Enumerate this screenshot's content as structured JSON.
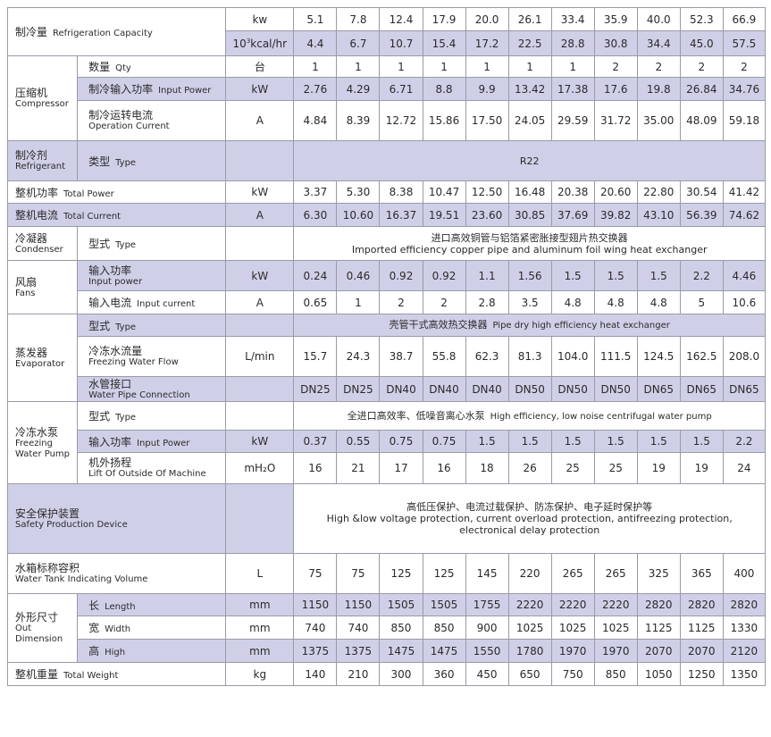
{
  "rows": {
    "cap_kw": {
      "label_zh": "制冷量",
      "label_en": "Refrigeration Capacity",
      "unit": "kw",
      "values": [
        "5.1",
        "7.8",
        "12.4",
        "17.9",
        "20.0",
        "26.1",
        "33.4",
        "35.9",
        "40.0",
        "52.3",
        "66.9"
      ]
    },
    "cap_kcal": {
      "unit_base": "10",
      "unit_sup": "3",
      "unit_rest": "kcal/hr",
      "values": [
        "4.4",
        "6.7",
        "10.7",
        "15.4",
        "17.2",
        "22.5",
        "28.8",
        "30.8",
        "34.4",
        "45.0",
        "57.5"
      ]
    },
    "comp_qty": {
      "group_zh": "压缩机",
      "group_en": "Compressor",
      "label_zh": "数量",
      "label_en": "Qty",
      "unit": "台",
      "values": [
        "1",
        "1",
        "1",
        "1",
        "1",
        "1",
        "1",
        "2",
        "2",
        "2",
        "2"
      ]
    },
    "comp_power": {
      "label_zh": "制冷输入功率",
      "label_en": "Input Power",
      "unit": "kW",
      "values": [
        "2.76",
        "4.29",
        "6.71",
        "8.8",
        "9.9",
        "13.42",
        "17.38",
        "17.6",
        "19.8",
        "26.84",
        "34.76"
      ]
    },
    "comp_current": {
      "label_zh": "制冷运转电流",
      "label_en": "Operation Current",
      "unit": "A",
      "values": [
        "4.84",
        "8.39",
        "12.72",
        "15.86",
        "17.50",
        "24.05",
        "29.59",
        "31.72",
        "35.00",
        "48.09",
        "59.18"
      ]
    },
    "refrigerant": {
      "group_zh": "制冷剂",
      "group_en": "Refrigerant",
      "label_zh": "类型",
      "label_en": "Type",
      "value": "R22"
    },
    "total_power": {
      "label_zh": "整机功率",
      "label_en": "Total Power",
      "unit": "kW",
      "values": [
        "3.37",
        "5.30",
        "8.38",
        "10.47",
        "12.50",
        "16.48",
        "20.38",
        "20.60",
        "22.80",
        "30.54",
        "41.42"
      ]
    },
    "total_current": {
      "label_zh": "整机电流",
      "label_en": "Total Current",
      "unit": "A",
      "values": [
        "6.30",
        "10.60",
        "16.37",
        "19.51",
        "23.60",
        "30.85",
        "37.69",
        "39.82",
        "43.10",
        "56.39",
        "74.62"
      ]
    },
    "condenser": {
      "group_zh": "冷凝器",
      "group_en": "Condenser",
      "label_zh": "型式",
      "label_en": "Type",
      "value_zh": "进口高效铜管与铝箔紧密胀接型翅片热交换器",
      "value_en": "Imported efficiency copper pipe and aluminum foil wing heat exchanger"
    },
    "fan_power": {
      "group_zh": "风扇",
      "group_en": "Fans",
      "label_zh": "输入功率",
      "label_en": "Input power",
      "unit": "kW",
      "values": [
        "0.24",
        "0.46",
        "0.92",
        "0.92",
        "1.1",
        "1.56",
        "1.5",
        "1.5",
        "1.5",
        "2.2",
        "4.46"
      ]
    },
    "fan_current": {
      "label_zh": "输入电流",
      "label_en": "Input current",
      "unit": "A",
      "values": [
        "0.65",
        "1",
        "2",
        "2",
        "2.8",
        "3.5",
        "4.8",
        "4.8",
        "4.8",
        "5",
        "10.6"
      ]
    },
    "evap_type": {
      "group_zh": "蒸发器",
      "group_en": "Evaporator",
      "label_zh": "型式",
      "label_en": "Type",
      "value_zh": "壳管干式高效热交换器",
      "value_en": "Pipe dry high efficiency heat exchanger"
    },
    "evap_flow": {
      "label_zh": "冷冻水流量",
      "label_en": "Freezing Water Flow",
      "unit": "L/min",
      "values": [
        "15.7",
        "24.3",
        "38.7",
        "55.8",
        "62.3",
        "81.3",
        "104.0",
        "111.5",
        "124.5",
        "162.5",
        "208.0"
      ]
    },
    "evap_pipe": {
      "label_zh": "水管接口",
      "label_en": "Water Pipe Connection",
      "unit": "",
      "values": [
        "DN25",
        "DN25",
        "DN40",
        "DN40",
        "DN40",
        "DN50",
        "DN50",
        "DN50",
        "DN65",
        "DN65",
        "DN65"
      ]
    },
    "pump_type": {
      "group_zh": "冷冻水泵",
      "group_en1": "Freezing",
      "group_en2": "Water Pump",
      "label_zh": "型式",
      "label_en": "Type",
      "value_zh": "全进口高效率、低噪音离心水泵",
      "value_en": "High efficiency, low noise centrifugal water pump"
    },
    "pump_power": {
      "label_zh": "输入功率",
      "label_en": "Input Power",
      "unit": "kW",
      "values": [
        "0.37",
        "0.55",
        "0.75",
        "0.75",
        "1.5",
        "1.5",
        "1.5",
        "1.5",
        "1.5",
        "1.5",
        "2.2"
      ]
    },
    "pump_lift": {
      "label_zh": "机外扬程",
      "label_en": "Lift Of Outside Of Machine",
      "unit": "mH₂O",
      "values": [
        "16",
        "21",
        "17",
        "16",
        "18",
        "26",
        "25",
        "25",
        "19",
        "19",
        "24"
      ]
    },
    "safety": {
      "label_zh": "安全保护装置",
      "label_en": "Safety Production Device",
      "value_zh": "高低压保护、电流过载保护、防冻保护、电子延时保护等",
      "value_en": "High &low voltage protection, current overload protection, antifreezing protection, electronical delay protection"
    },
    "tank": {
      "label_zh": "水箱标称容积",
      "label_en": "Water Tank Indicating Volume",
      "unit": "L",
      "values": [
        "75",
        "75",
        "125",
        "125",
        "145",
        "220",
        "265",
        "265",
        "325",
        "365",
        "400"
      ]
    },
    "dim_length": {
      "group_zh": "外形尺寸",
      "group_en": "Out Dimension",
      "label_zh": "长",
      "label_en": "Length",
      "unit": "mm",
      "values": [
        "1150",
        "1150",
        "1505",
        "1505",
        "1755",
        "2220",
        "2220",
        "2220",
        "2820",
        "2820",
        "2820"
      ]
    },
    "dim_width": {
      "label_zh": "宽",
      "label_en": "Width",
      "unit": "mm",
      "values": [
        "740",
        "740",
        "850",
        "850",
        "900",
        "1025",
        "1025",
        "1025",
        "1125",
        "1125",
        "1330"
      ]
    },
    "dim_height": {
      "label_zh": "高",
      "label_en": "High",
      "unit": "mm",
      "values": [
        "1375",
        "1375",
        "1475",
        "1475",
        "1550",
        "1780",
        "1970",
        "1970",
        "2070",
        "2070",
        "2120"
      ]
    },
    "weight": {
      "label_zh": "整机重量",
      "label_en": "Total Weight",
      "unit": "kg",
      "values": [
        "140",
        "210",
        "300",
        "360",
        "450",
        "650",
        "750",
        "850",
        "1050",
        "1250",
        "1350"
      ]
    }
  }
}
